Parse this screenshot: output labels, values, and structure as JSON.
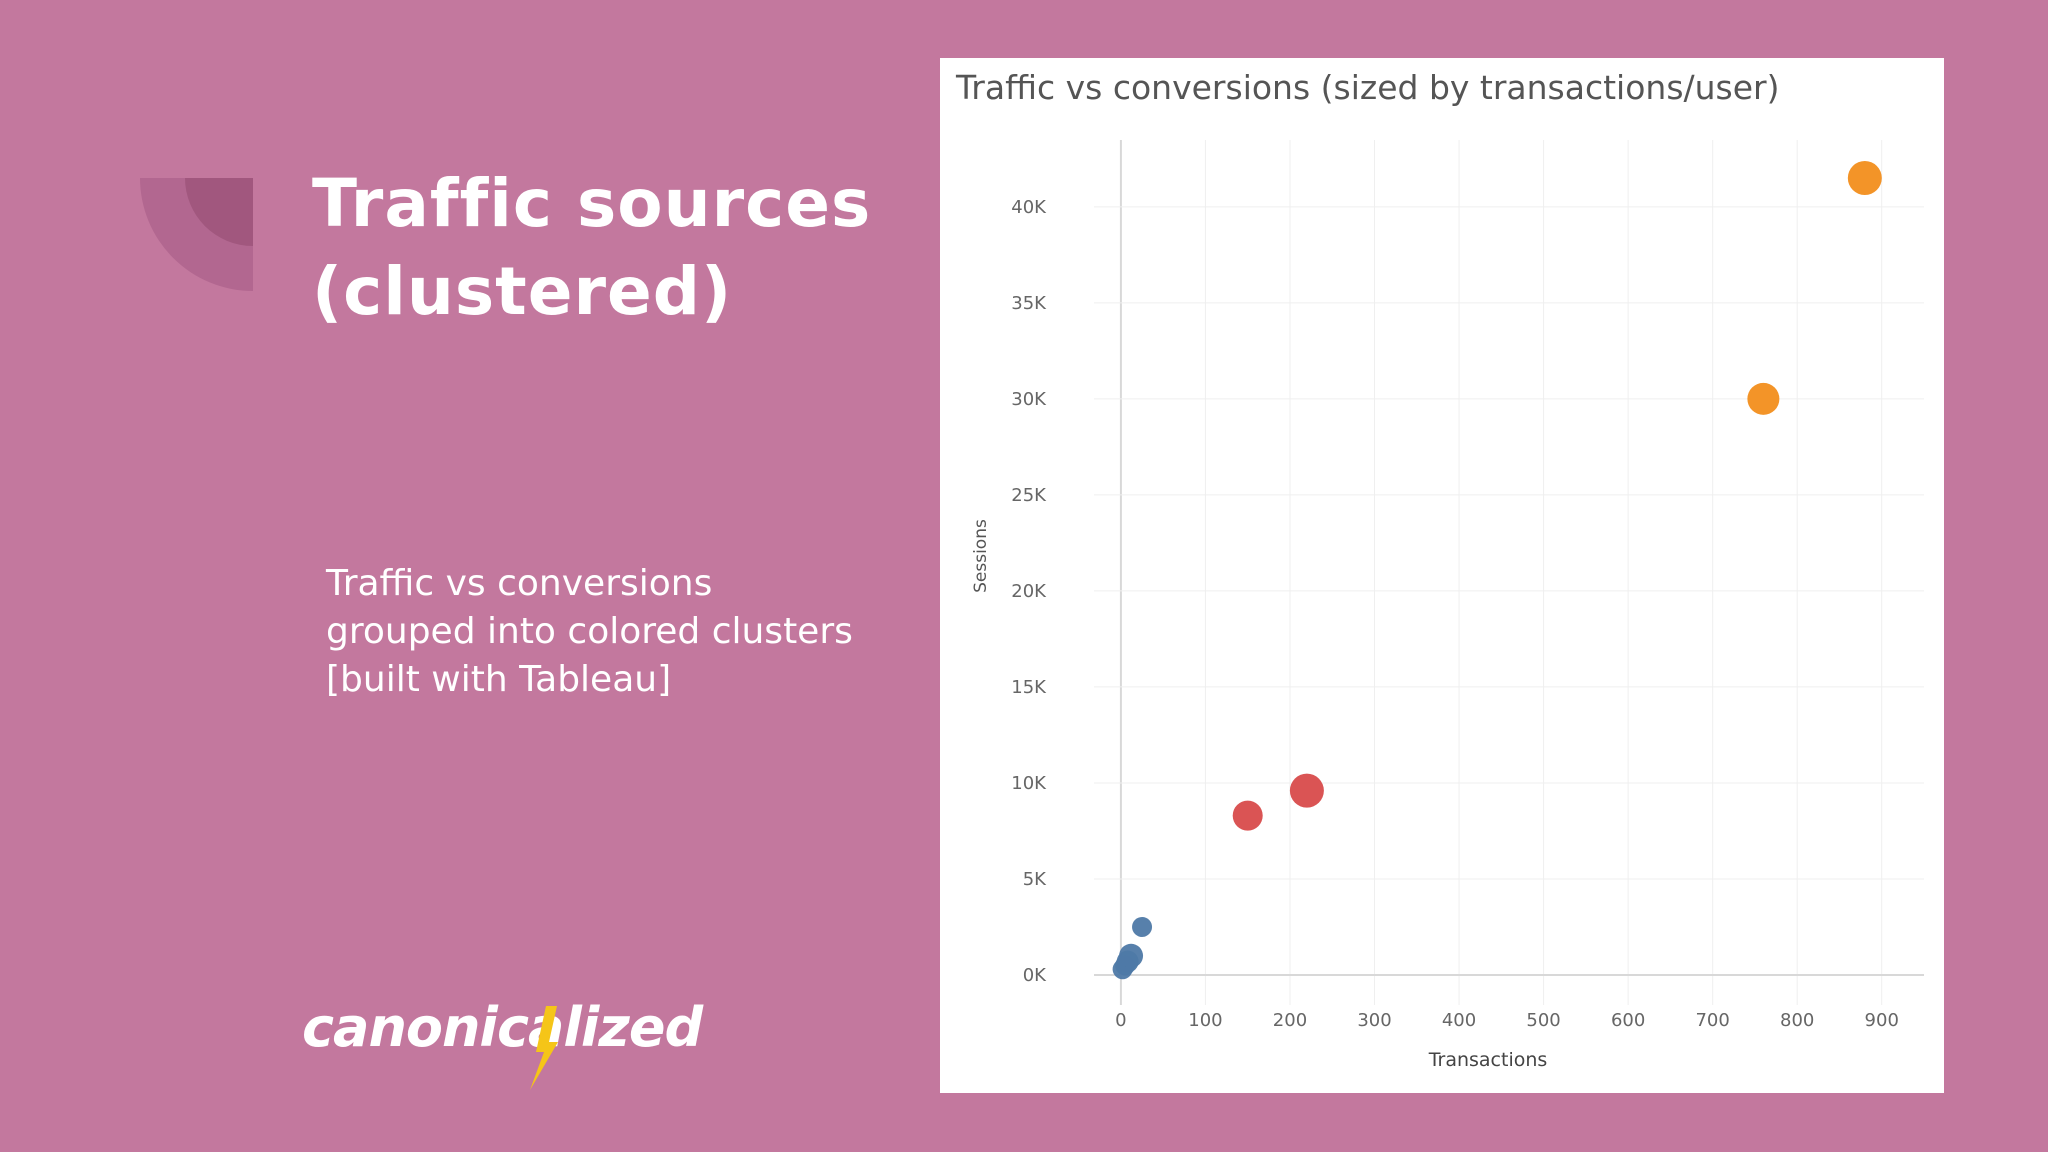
{
  "slide": {
    "title_line1": "Traffic sources",
    "title_line2": "(clustered)",
    "subtitle_line1": "Traffic vs conversions",
    "subtitle_line2": "grouped into colored clusters",
    "subtitle_line3": "[built with Tableau]",
    "logo_text": "canonicalized",
    "logo_icon": "lightning-bolt-icon",
    "colors": {
      "background": "#c3789e",
      "logo_accent": "#f5c518"
    }
  },
  "chart_data": {
    "type": "scatter",
    "title": "Traffic vs conversions (sized by transactions/user)",
    "xlabel": "Transactions",
    "ylabel": "Sessions",
    "xlim": [
      -20,
      950
    ],
    "ylim": [
      -2500,
      44000
    ],
    "x_ticks": [
      0,
      100,
      200,
      300,
      400,
      500,
      600,
      700,
      800,
      900
    ],
    "x_tick_labels": [
      "0",
      "100",
      "200",
      "300",
      "400",
      "500",
      "600",
      "700",
      "800",
      "900"
    ],
    "y_ticks": [
      0,
      5000,
      10000,
      15000,
      20000,
      25000,
      30000,
      35000,
      40000
    ],
    "y_tick_labels": [
      "0K",
      "5K",
      "10K",
      "15K",
      "20K",
      "25K",
      "30K",
      "35K",
      "40K"
    ],
    "grid": true,
    "legend": "none",
    "points": [
      {
        "x": 2,
        "y": 300,
        "size": 1.0,
        "color": "#4e79a7"
      },
      {
        "x": 5,
        "y": 500,
        "size": 1.0,
        "color": "#4e79a7"
      },
      {
        "x": 8,
        "y": 700,
        "size": 1.1,
        "color": "#4e79a7"
      },
      {
        "x": 12,
        "y": 1000,
        "size": 1.2,
        "color": "#4e79a7"
      },
      {
        "x": 25,
        "y": 2500,
        "size": 1.0,
        "color": "#4e79a7"
      },
      {
        "x": 150,
        "y": 8300,
        "size": 1.5,
        "color": "#d84b4b"
      },
      {
        "x": 220,
        "y": 9600,
        "size": 1.7,
        "color": "#d84b4b"
      },
      {
        "x": 760,
        "y": 30000,
        "size": 1.6,
        "color": "#f28e1c"
      },
      {
        "x": 880,
        "y": 41500,
        "size": 1.7,
        "color": "#f28e1c"
      }
    ]
  }
}
